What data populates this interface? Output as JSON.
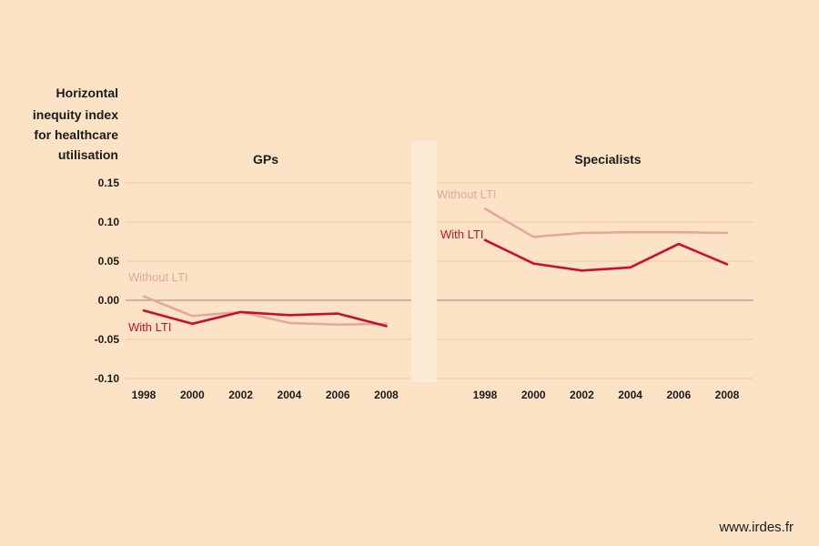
{
  "colors": {
    "background": "#fde3c6",
    "with_lti": "#c8102e",
    "without_lti": "#e4a7a0",
    "grid": "#f3c9a0",
    "zero_line": "#9a8478",
    "separator": "#fdebd6"
  },
  "chart_data": {
    "type": "line",
    "ylabel": [
      "Horizontal",
      "inequity index",
      "for healthcare",
      "utilisation"
    ],
    "ylim": [
      -0.1,
      0.15
    ],
    "yticks": [
      0.15,
      0.1,
      0.05,
      0.0,
      -0.05,
      -0.1
    ],
    "ytick_labels": [
      "0.15",
      "0.10",
      "0.05",
      "0.00",
      "-0.05",
      "-0.10"
    ],
    "x": [
      1998,
      2000,
      2002,
      2004,
      2006,
      2008
    ],
    "x_labels": [
      "1998",
      "2000",
      "2002",
      "2004",
      "2006",
      "2008"
    ],
    "grid": true,
    "panels": [
      {
        "title": "GPs",
        "series": [
          {
            "name": "Without LTI",
            "color_key": "without_lti",
            "values": [
              0.005,
              -0.02,
              -0.015,
              -0.029,
              -0.031,
              -0.03
            ]
          },
          {
            "name": "With LTI",
            "color_key": "with_lti",
            "values": [
              -0.013,
              -0.03,
              -0.015,
              -0.019,
              -0.017,
              -0.033
            ]
          }
        ]
      },
      {
        "title": "Specialists",
        "series": [
          {
            "name": "Without LTI",
            "color_key": "without_lti",
            "values": [
              0.117,
              0.081,
              0.086,
              0.087,
              0.087,
              0.086
            ]
          },
          {
            "name": "With LTI",
            "color_key": "with_lti",
            "values": [
              0.077,
              0.047,
              0.038,
              0.042,
              0.072,
              0.046
            ]
          }
        ]
      }
    ]
  },
  "footer": {
    "source": "www.irdes.fr"
  }
}
